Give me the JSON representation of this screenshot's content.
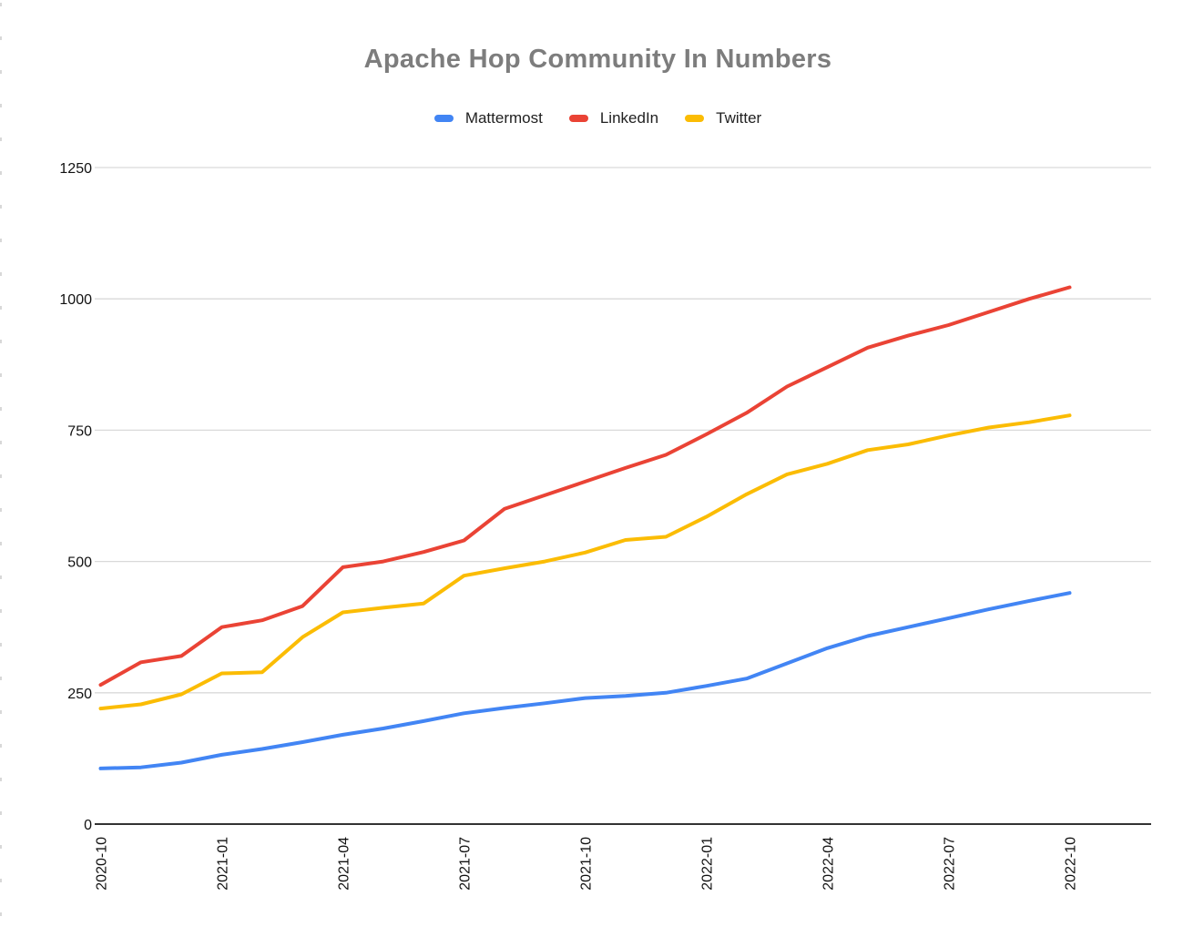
{
  "chart_data": {
    "type": "line",
    "title": "Apache Hop Community In Numbers",
    "title_color": "#7d7d7d",
    "legend_position": "top",
    "grid": true,
    "gridline_color": "#d9d9d9",
    "axis_line_color": "#333333",
    "axis_label_color": "#111111",
    "background_color": "#ffffff",
    "ylim": [
      0,
      1250
    ],
    "y_ticks": [
      0,
      250,
      500,
      750,
      1000,
      1250
    ],
    "x_tick_labels": [
      "2020-10",
      "2021-01",
      "2021-04",
      "2021-07",
      "2021-10",
      "2022-01",
      "2022-04",
      "2022-07",
      "2022-10"
    ],
    "x_tick_every": 3,
    "categories": [
      "2020-10",
      "2020-11",
      "2020-12",
      "2021-01",
      "2021-02",
      "2021-03",
      "2021-04",
      "2021-05",
      "2021-06",
      "2021-07",
      "2021-08",
      "2021-09",
      "2021-10",
      "2021-11",
      "2021-12",
      "2022-01",
      "2022-02",
      "2022-03",
      "2022-04",
      "2022-05",
      "2022-06",
      "2022-07",
      "2022-08",
      "2022-09",
      "2022-10"
    ],
    "series": [
      {
        "name": "Mattermost",
        "color": "#4285F4",
        "values": [
          106,
          108,
          117,
          132,
          143,
          156,
          170,
          182,
          196,
          211,
          221,
          230,
          240,
          244,
          250,
          263,
          277,
          306,
          335,
          358,
          375,
          392,
          409,
          425,
          440
        ]
      },
      {
        "name": "LinkedIn",
        "color": "#EA4335",
        "values": [
          265,
          308,
          320,
          375,
          388,
          415,
          489,
          500,
          518,
          540,
          600,
          626,
          652,
          678,
          703,
          742,
          783,
          833,
          870,
          907,
          930,
          950,
          975,
          1000,
          1022
        ]
      },
      {
        "name": "Twitter",
        "color": "#FBBC04",
        "values": [
          220,
          228,
          247,
          287,
          289,
          356,
          403,
          412,
          420,
          473,
          487,
          500,
          517,
          541,
          547,
          585,
          628,
          666,
          686,
          712,
          723,
          740,
          755,
          765,
          778
        ]
      }
    ]
  }
}
